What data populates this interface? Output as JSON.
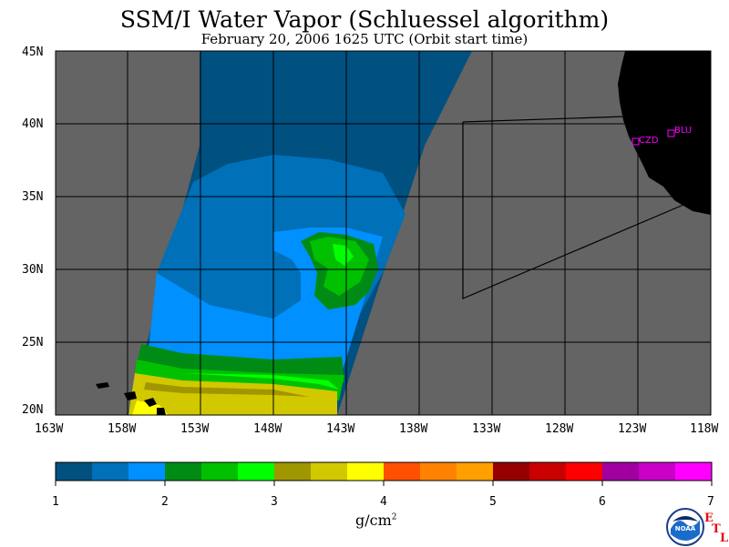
{
  "title": "SSM/I Water Vapor (Schluessel algorithm)",
  "subtitle": "February 20, 2006  1625 UTC  (Orbit start time)",
  "lat_labels": [
    "45N",
    "40N",
    "35N",
    "30N",
    "25N",
    "20N"
  ],
  "lon_labels": [
    "163W",
    "158W",
    "153W",
    "148W",
    "143W",
    "138W",
    "133W",
    "128W",
    "123W",
    "118W"
  ],
  "stations": [
    {
      "name": "CZD",
      "lon": -123.3,
      "lat": 38.6
    },
    {
      "name": "BLU",
      "lon": -120.7,
      "lat": 39.3
    }
  ],
  "colorbar": {
    "colors": [
      "#005080",
      "#0070b8",
      "#0090ff",
      "#008c14",
      "#00c000",
      "#00ff00",
      "#a09600",
      "#d2c800",
      "#ffff00",
      "#ff5000",
      "#ff8200",
      "#ffa000",
      "#960000",
      "#c80000",
      "#ff0000",
      "#a000a0",
      "#c800c8",
      "#ff00ff"
    ],
    "tick_labels": [
      "1",
      "2",
      "3",
      "4",
      "5",
      "6",
      "7"
    ],
    "unit": "g/cm",
    "unit_sup": "2"
  },
  "map": {
    "lon_range": [
      -163,
      -118
    ],
    "lat_range": [
      20,
      45
    ],
    "ocean_color": "#646464",
    "land_color": "#000000",
    "grid_color": "#000000",
    "station_color": "#ff00ff"
  },
  "logo": {
    "text": "NOAA",
    "etl_letters": [
      "E",
      "T",
      "L"
    ]
  }
}
